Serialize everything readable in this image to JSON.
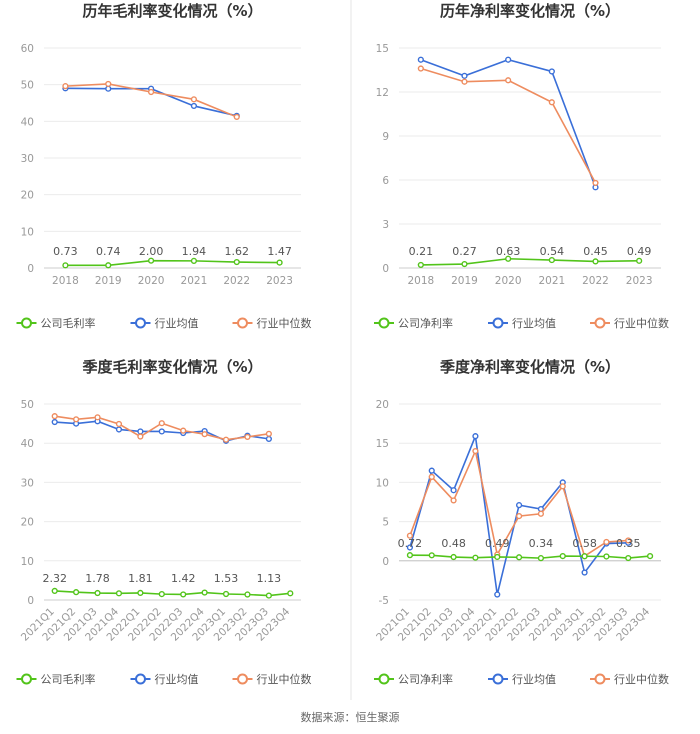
{
  "colors": {
    "company": "#52c41a",
    "avg": "#3a6fd8",
    "median": "#ee8c5f",
    "grid": "#ebebeb",
    "axis": "#cccccc"
  },
  "legend_labels": {
    "avg": "行业均值",
    "median": "行业中位数"
  },
  "source": "数据来源：恒生聚源",
  "chart_data": [
    {
      "type": "line",
      "title": "历年毛利率变化情况（%）",
      "categories": [
        "2018",
        "2019",
        "2020",
        "2021",
        "2022",
        "2023"
      ],
      "ylim": [
        0,
        60
      ],
      "yticks": [
        0,
        10,
        20,
        30,
        40,
        50,
        60
      ],
      "company_label": "公司毛利率",
      "series": [
        {
          "key": "company",
          "name": "公司毛利率",
          "values": [
            0.73,
            0.74,
            2.0,
            1.94,
            1.62,
            1.47
          ]
        },
        {
          "key": "avg",
          "name": "行业均值",
          "values": [
            49.0,
            48.9,
            48.9,
            44.2,
            41.5,
            null
          ]
        },
        {
          "key": "median",
          "name": "行业中位数",
          "values": [
            49.6,
            50.2,
            48.0,
            46.0,
            41.2,
            null
          ]
        }
      ],
      "data_labels": [
        "0.73",
        "0.74",
        "2.00",
        "1.94",
        "1.62",
        "1.47"
      ]
    },
    {
      "type": "line",
      "title": "历年净利率变化情况（%）",
      "categories": [
        "2018",
        "2019",
        "2020",
        "2021",
        "2022",
        "2023"
      ],
      "ylim": [
        0,
        15
      ],
      "yticks": [
        0,
        3,
        6,
        9,
        12,
        15
      ],
      "company_label": "公司净利率",
      "series": [
        {
          "key": "company",
          "name": "公司净利率",
          "values": [
            0.21,
            0.27,
            0.63,
            0.54,
            0.45,
            0.49
          ]
        },
        {
          "key": "avg",
          "name": "行业均值",
          "values": [
            14.2,
            13.1,
            14.2,
            13.4,
            5.5,
            null
          ]
        },
        {
          "key": "median",
          "name": "行业中位数",
          "values": [
            13.6,
            12.7,
            12.8,
            11.3,
            5.8,
            null
          ]
        }
      ],
      "data_labels": [
        "0.21",
        "0.27",
        "0.63",
        "0.54",
        "0.45",
        "0.49"
      ]
    },
    {
      "type": "line",
      "title": "季度毛利率变化情况（%）",
      "categories": [
        "2021Q1",
        "2021Q2",
        "2021Q3",
        "2021Q4",
        "2022Q1",
        "2022Q2",
        "2022Q3",
        "2022Q4",
        "2023Q1",
        "2023Q2",
        "2023Q3",
        "2023Q4"
      ],
      "ylim": [
        0,
        50
      ],
      "yticks": [
        0,
        10,
        20,
        30,
        40,
        50
      ],
      "company_label": "公司毛利率",
      "series": [
        {
          "key": "company",
          "name": "公司毛利率",
          "values": [
            2.32,
            2.0,
            1.78,
            1.7,
            1.81,
            1.5,
            1.42,
            1.9,
            1.53,
            1.4,
            1.13,
            1.7
          ]
        },
        {
          "key": "avg",
          "name": "行业均值",
          "values": [
            45.4,
            45.0,
            45.6,
            43.5,
            43.0,
            43.0,
            42.6,
            43.1,
            40.6,
            41.9,
            41.1,
            null
          ]
        },
        {
          "key": "median",
          "name": "行业中位数",
          "values": [
            46.9,
            46.1,
            46.6,
            44.9,
            41.7,
            45.1,
            43.2,
            42.3,
            40.9,
            41.6,
            42.4,
            null
          ]
        }
      ],
      "data_labels": [
        "2.32",
        "",
        "1.78",
        "",
        "1.81",
        "",
        "1.42",
        "",
        "1.53",
        "",
        "1.13",
        ""
      ]
    },
    {
      "type": "line",
      "title": "季度净利率变化情况（%）",
      "categories": [
        "2021Q1",
        "2021Q2",
        "2021Q3",
        "2021Q4",
        "2022Q1",
        "2022Q2",
        "2022Q3",
        "2022Q4",
        "2023Q1",
        "2023Q2",
        "2023Q3",
        "2023Q4"
      ],
      "ylim": [
        -5,
        20
      ],
      "yticks": [
        -5,
        0,
        5,
        10,
        15,
        20
      ],
      "company_label": "公司净利率",
      "series": [
        {
          "key": "company",
          "name": "公司净利率",
          "values": [
            0.72,
            0.7,
            0.48,
            0.4,
            0.49,
            0.45,
            0.34,
            0.6,
            0.58,
            0.55,
            0.35,
            0.6
          ]
        },
        {
          "key": "avg",
          "name": "行业均值",
          "values": [
            1.7,
            11.5,
            9.0,
            15.9,
            -4.3,
            7.1,
            6.6,
            10.0,
            -1.5,
            2.2,
            2.3,
            null
          ]
        },
        {
          "key": "median",
          "name": "行业中位数",
          "values": [
            3.2,
            10.7,
            7.7,
            14.0,
            0.8,
            5.7,
            6.0,
            9.5,
            0.6,
            2.4,
            2.6,
            null
          ]
        }
      ],
      "data_labels": [
        "0.72",
        "",
        "0.48",
        "",
        "0.49",
        "",
        "0.34",
        "",
        "0.58",
        "",
        "0.35",
        ""
      ]
    }
  ]
}
